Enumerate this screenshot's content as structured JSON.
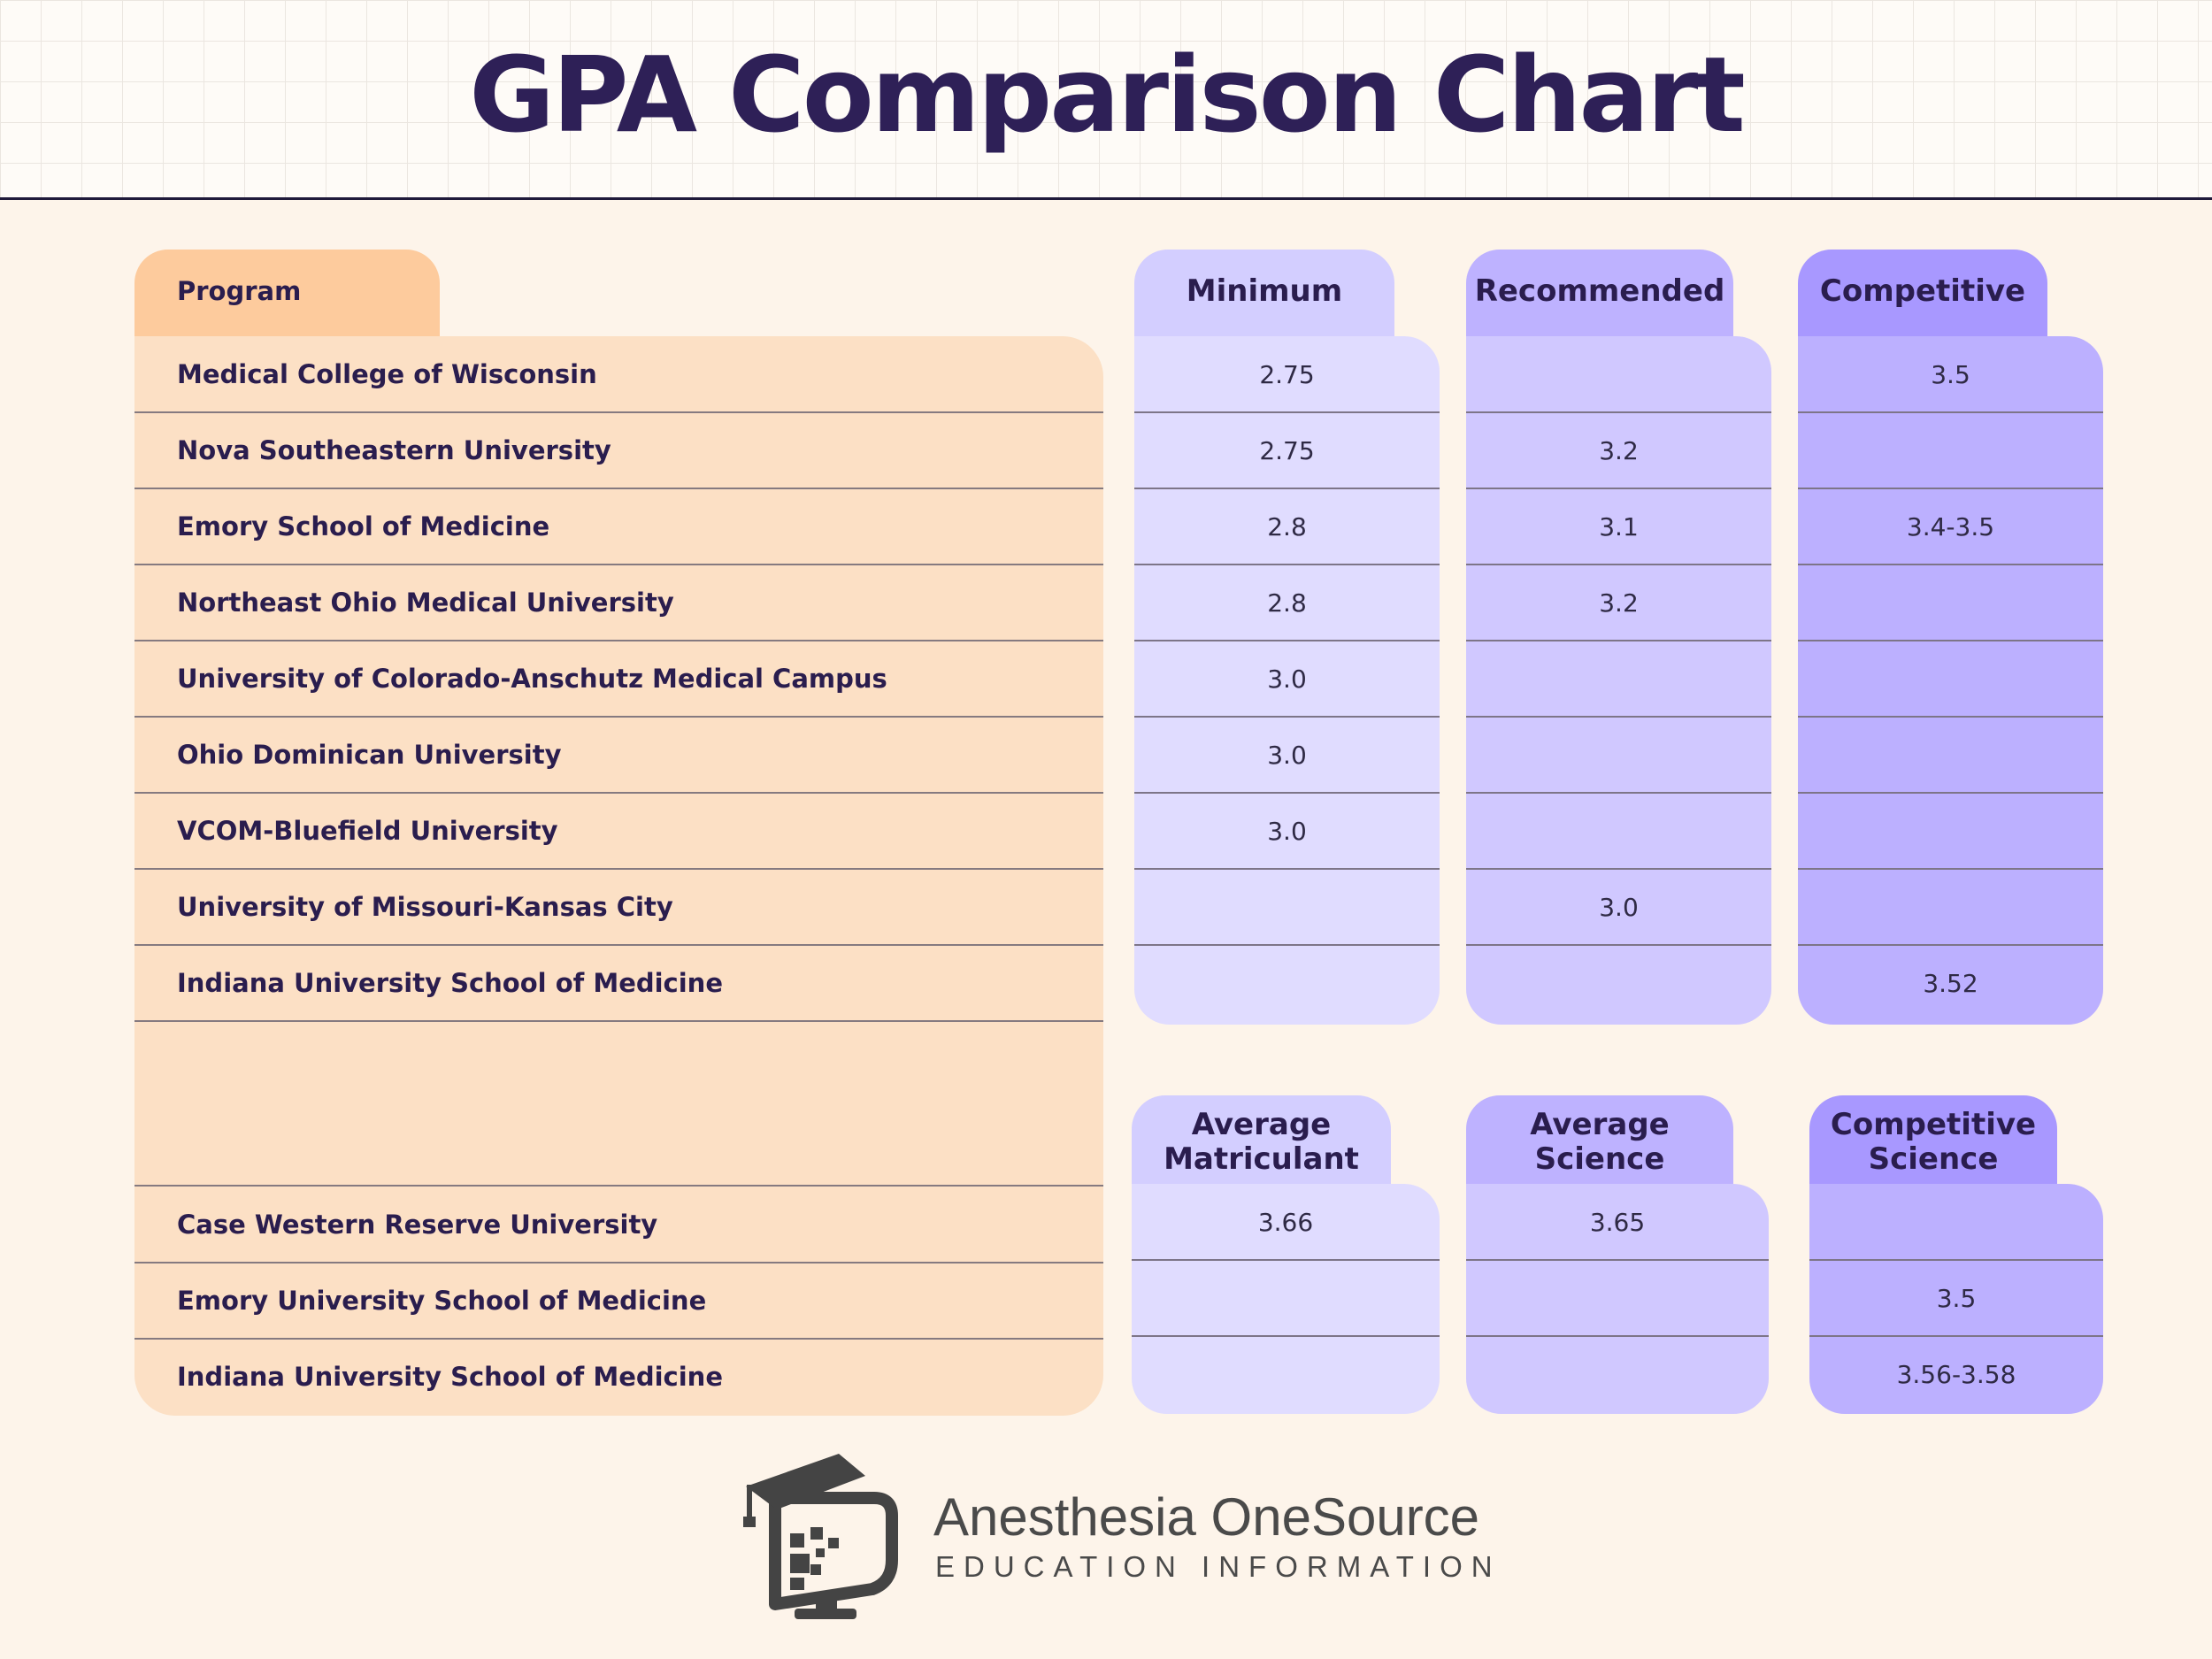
{
  "title": "GPA Comparison Chart",
  "colors": {
    "program_panel": "#fce0c5",
    "program_tab": "#fdcb9d",
    "minimum": "#e0dcff",
    "minimum_tab": "#d3ceff",
    "recommended": "#d0c8ff",
    "recommended_tab": "#beb2ff",
    "competitive": "#bcb0ff",
    "competitive_tab": "#a898ff",
    "title": "#2e2057"
  },
  "table1": {
    "program_header": "Program",
    "columns": [
      "Minimum",
      "Recommended",
      "Competitive"
    ],
    "rows": [
      {
        "program": "Medical College of Wisconsin",
        "values": [
          "2.75",
          "",
          "3.5"
        ]
      },
      {
        "program": "Nova Southeastern University",
        "values": [
          "2.75",
          "3.2",
          ""
        ]
      },
      {
        "program": "Emory School of Medicine",
        "values": [
          "2.8",
          "3.1",
          "3.4-3.5"
        ]
      },
      {
        "program": "Northeast Ohio Medical University",
        "values": [
          "2.8",
          "3.2",
          ""
        ]
      },
      {
        "program": "University of Colorado-Anschutz Medical Campus",
        "values": [
          "3.0",
          "",
          ""
        ]
      },
      {
        "program": "Ohio Dominican University",
        "values": [
          "3.0",
          "",
          ""
        ]
      },
      {
        "program": "VCOM-Bluefield University",
        "values": [
          "3.0",
          "",
          ""
        ]
      },
      {
        "program": "University of Missouri-Kansas City",
        "values": [
          "",
          "3.0",
          ""
        ]
      },
      {
        "program": "Indiana University School of Medicine",
        "values": [
          "",
          "",
          "3.52"
        ]
      }
    ]
  },
  "table2": {
    "columns": [
      "Average Matriculant",
      "Average Science",
      "Competitive Science"
    ],
    "rows": [
      {
        "program": "Case Western Reserve University",
        "values": [
          "3.66",
          "3.65",
          ""
        ]
      },
      {
        "program": "Emory University School of Medicine",
        "values": [
          "",
          "",
          "3.5"
        ]
      },
      {
        "program": "Indiana University School of Medicine",
        "values": [
          "",
          "",
          "3.56-3.58"
        ]
      }
    ]
  },
  "brand": {
    "name": "Anesthesia OneSource",
    "tagline": "EDUCATION INFORMATION",
    "icon": "graduation-cap-monitor-icon"
  }
}
